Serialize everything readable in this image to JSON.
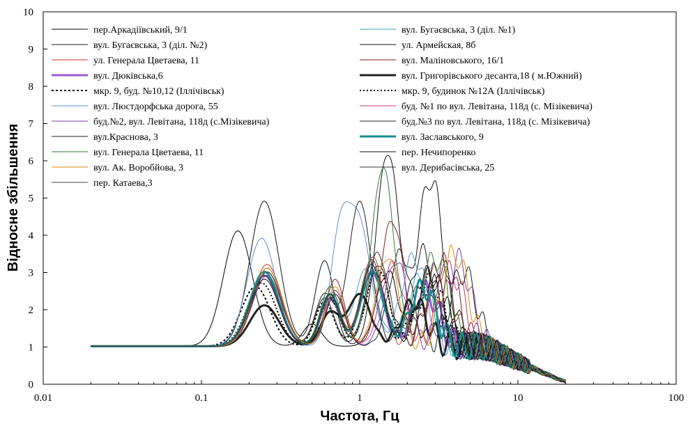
{
  "chart_data": {
    "type": "line",
    "title": "",
    "xlabel": "Частота, Гц",
    "ylabel": "Відносне збільшення",
    "xscale": "log",
    "xlim": [
      0.01,
      100
    ],
    "ylim": [
      0,
      10
    ],
    "x_ticks": [
      0.01,
      0.1,
      1,
      10,
      100
    ],
    "x_tick_labels": [
      "0.01",
      "0.1",
      "1",
      "10",
      "100"
    ],
    "y_ticks": [
      0,
      1,
      2,
      3,
      4,
      5,
      6,
      7,
      8,
      9,
      10
    ],
    "y_tick_labels": [
      "0",
      "1",
      "2",
      "3",
      "4",
      "5",
      "6",
      "7",
      "8",
      "9",
      "10"
    ],
    "grid": false,
    "legend_position": "top (inside plot, two columns)",
    "series": [
      {
        "name": "пер.Аркадіївський, 9/1",
        "color": "#000000",
        "width": 1,
        "dash": "",
        "peaks": [
          [
            0.17,
            4.1
          ],
          [
            0.5,
            1.6
          ],
          [
            1.5,
            3.0
          ],
          [
            3,
            2.6
          ]
        ]
      },
      {
        "name": "вул. Бугаєвська, 3 (діл. №1)",
        "color": "#2aa6b4",
        "width": 1,
        "dash": "",
        "peaks": [
          [
            0.25,
            2.9
          ],
          [
            0.65,
            2.4
          ],
          [
            1.1,
            3.1
          ],
          [
            2.4,
            2.8
          ]
        ]
      },
      {
        "name": "вул. Бугаєвська, 3 (діл. №2)",
        "color": "#1a1a1a",
        "width": 1,
        "dash": "",
        "peaks": [
          [
            0.25,
            2.8
          ],
          [
            0.6,
            2.3
          ],
          [
            1.3,
            3.2
          ],
          [
            2.8,
            2.9
          ]
        ]
      },
      {
        "name": "ул. Армейская, 8б",
        "color": "#101010",
        "width": 1,
        "dash": "",
        "peaks": [
          [
            0.25,
            4.9
          ],
          [
            0.6,
            3.3
          ],
          [
            1.5,
            6.2
          ],
          [
            2.8,
            5.5
          ]
        ]
      },
      {
        "name": "ул. Генерала Цветаева, 11",
        "color": "#c0392b",
        "width": 1,
        "dash": "",
        "peaks": [
          [
            0.26,
            3.2
          ],
          [
            0.65,
            2.6
          ],
          [
            1.2,
            3.4
          ],
          [
            3.2,
            3.1
          ]
        ]
      },
      {
        "name": "вул. Маліновського, 16/1",
        "color": "#8b1a1a",
        "width": 1,
        "dash": "",
        "peaks": [
          [
            0.26,
            3.1
          ],
          [
            0.7,
            2.8
          ],
          [
            1.6,
            4.4
          ],
          [
            3.5,
            3.2
          ]
        ]
      },
      {
        "name": "вул. Дюківська,6",
        "color": "#9b59d6",
        "width": 3,
        "dash": "",
        "peaks": [
          [
            0.25,
            2.9
          ],
          [
            0.65,
            2.3
          ],
          [
            1.2,
            3.0
          ],
          [
            2.6,
            2.5
          ]
        ]
      },
      {
        "name": "вул. Григорівського десанта,18 ( м.Южний)",
        "color": "#222222",
        "width": 3,
        "dash": "",
        "peaks": [
          [
            0.25,
            2.1
          ],
          [
            0.65,
            1.9
          ],
          [
            1.0,
            2.4
          ],
          [
            2.2,
            2.2
          ]
        ]
      },
      {
        "name": "мкр. 9, буд. №10,12 (Іллічівськ)",
        "color": "#000000",
        "width": 2,
        "dash": "3,3",
        "peaks": [
          [
            0.22,
            2.6
          ],
          [
            0.6,
            2.2
          ],
          [
            1.2,
            3.0
          ],
          [
            2.6,
            2.6
          ]
        ]
      },
      {
        "name": "мкр. 9, будинок №12А (Іллічівськ)",
        "color": "#000000",
        "width": 2,
        "dash": "2,3",
        "peaks": [
          [
            0.24,
            2.7
          ],
          [
            0.65,
            2.3
          ],
          [
            1.3,
            3.1
          ],
          [
            2.8,
            2.7
          ]
        ]
      },
      {
        "name": "вул. Люстдорфська дорога, 55",
        "color": "#5b8fd6",
        "width": 1,
        "dash": "",
        "peaks": [
          [
            0.24,
            3.9
          ],
          [
            0.75,
            3.9
          ],
          [
            1.0,
            4.2
          ],
          [
            2.2,
            3.4
          ]
        ]
      },
      {
        "name": "буд. №1 по вул. Левітана, 118д (с. Мізікевича)",
        "color": "#c0397a",
        "width": 1,
        "dash": "",
        "peaks": [
          [
            0.26,
            3.0
          ],
          [
            0.7,
            2.5
          ],
          [
            1.6,
            3.2
          ],
          [
            3.8,
            3.0
          ]
        ]
      },
      {
        "name": "буд.№2, вул. Левітана, 118д (с.Мізікевича)",
        "color": "#7a3fb0",
        "width": 1,
        "dash": "",
        "peaks": [
          [
            0.26,
            2.9
          ],
          [
            0.7,
            2.5
          ],
          [
            1.7,
            3.3
          ],
          [
            4.2,
            3.3
          ]
        ]
      },
      {
        "name": "буд.№3 по вул. Левітана, 118д (с. Мізікевича)",
        "color": "#202020",
        "width": 1,
        "dash": "",
        "peaks": [
          [
            0.26,
            3.0
          ],
          [
            0.7,
            2.4
          ],
          [
            1.8,
            3.5
          ],
          [
            4.5,
            3.0
          ]
        ]
      },
      {
        "name": "вул.Краснова, 3",
        "color": "#1e1e1e",
        "width": 1,
        "dash": "",
        "peaks": [
          [
            0.25,
            3.0
          ],
          [
            0.6,
            2.4
          ],
          [
            1.0,
            4.9
          ],
          [
            2.5,
            3.5
          ]
        ]
      },
      {
        "name": "вул. Заславського, 9",
        "color": "#138d8d",
        "width": 3,
        "dash": "",
        "peaks": [
          [
            0.25,
            3.0
          ],
          [
            0.65,
            2.4
          ],
          [
            1.2,
            3.0
          ],
          [
            2.5,
            2.6
          ]
        ]
      },
      {
        "name": "вул. Генерала Цветаева, 11",
        "color": "#2e7d32",
        "width": 1,
        "dash": "",
        "peaks": [
          [
            0.26,
            3.1
          ],
          [
            0.65,
            2.6
          ],
          [
            1.4,
            5.8
          ],
          [
            3.0,
            3.4
          ]
        ]
      },
      {
        "name": "пер. Нечипоренко",
        "color": "#0d0d0d",
        "width": 1,
        "dash": "",
        "peaks": [
          [
            0.25,
            2.9
          ],
          [
            0.65,
            2.4
          ],
          [
            1.2,
            3.2
          ],
          [
            2.8,
            3.0
          ]
        ]
      },
      {
        "name": "вул. Ак. Воробйова, 3",
        "color": "#e08a00",
        "width": 1,
        "dash": "",
        "peaks": [
          [
            0.26,
            3.1
          ],
          [
            0.7,
            2.6
          ],
          [
            1.5,
            3.4
          ],
          [
            4.0,
            3.5
          ]
        ]
      },
      {
        "name": "вул. Дерибасівська, 25",
        "color": "#333333",
        "width": 1,
        "dash": "",
        "peaks": [
          [
            0.25,
            2.8
          ],
          [
            0.65,
            2.4
          ],
          [
            1.3,
            3.5
          ],
          [
            3.2,
            3.2
          ]
        ]
      },
      {
        "name": "пер. Катаева,3",
        "color": "#444444",
        "width": 1,
        "dash": "",
        "peaks": [
          [
            0.25,
            2.9
          ],
          [
            0.6,
            2.3
          ],
          [
            1.2,
            3.3
          ],
          [
            2.6,
            2.9
          ]
        ]
      }
    ]
  }
}
